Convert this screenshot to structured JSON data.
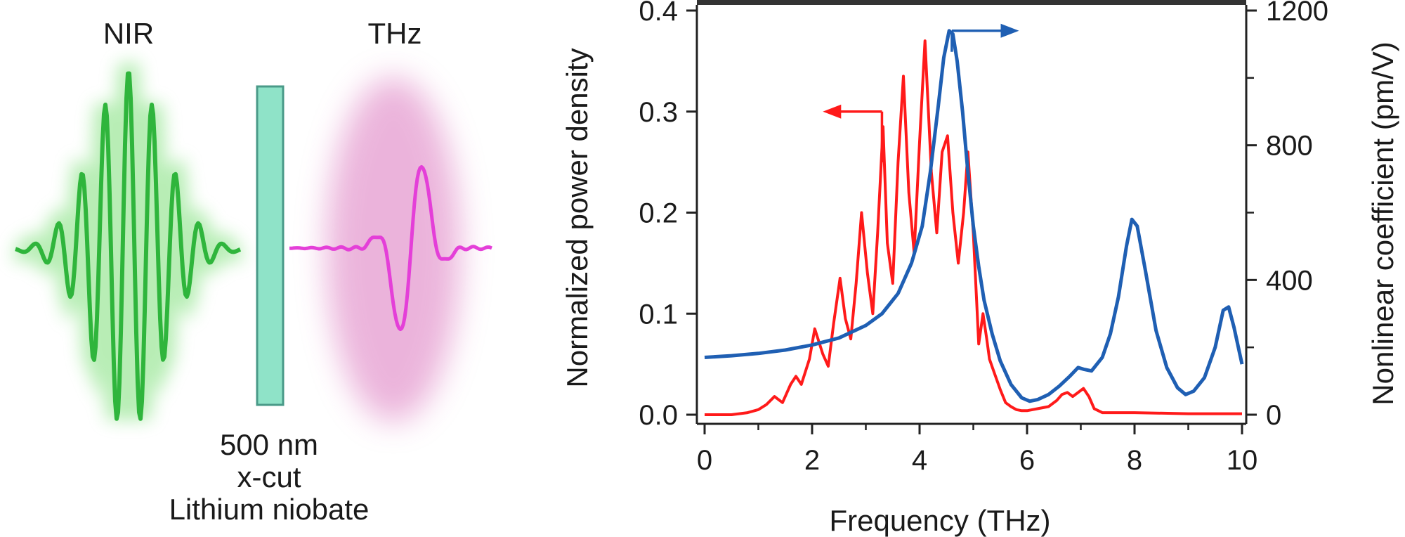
{
  "schematic": {
    "nir_label": "NIR",
    "thz_label": "THz",
    "crystal_label_line1": "500 nm",
    "crystal_label_line2": "x-cut",
    "crystal_label_line3": "Lithium niobate",
    "colors": {
      "nir_pulse": "#2fb53c",
      "nir_glow": "#7fe07a",
      "thz_pulse": "#e43fd8",
      "thz_glow": "#d86ab8",
      "crystal_fill": "#8fe3c8",
      "crystal_stroke": "#4a9a88"
    }
  },
  "chart_data": {
    "type": "line",
    "xlabel": "Frequency (THz)",
    "ylabel_left": "Normalized power density",
    "ylabel_right": "Nonlinear coefficient (pm/V)",
    "xlim": [
      0,
      10
    ],
    "ylim_left": [
      0,
      0.4
    ],
    "ylim_right": [
      0,
      1200
    ],
    "x_ticks": [
      0,
      2,
      4,
      6,
      8,
      10
    ],
    "x_tick_labels": [
      "0",
      "2",
      "4",
      "6",
      "8",
      "10"
    ],
    "left_ticks": [
      0,
      0.1,
      0.2,
      0.3,
      0.4
    ],
    "left_tick_labels": [
      "0.0",
      "0.1",
      "0.2",
      "0.3",
      "0.4"
    ],
    "right_ticks": [
      0,
      400,
      800,
      1200
    ],
    "right_tick_labels": [
      "0",
      "400",
      "800",
      "1200"
    ],
    "series": [
      {
        "name": "Normalized power density",
        "axis": "left",
        "color": "#ff1a1a",
        "x": [
          0.0,
          0.5,
          0.8,
          1.0,
          1.15,
          1.3,
          1.45,
          1.6,
          1.7,
          1.8,
          1.95,
          2.05,
          2.2,
          2.3,
          2.4,
          2.52,
          2.62,
          2.72,
          2.82,
          2.92,
          3.03,
          3.13,
          3.22,
          3.32,
          3.4,
          3.5,
          3.6,
          3.7,
          3.8,
          3.9,
          4.0,
          4.1,
          4.22,
          4.32,
          4.42,
          4.52,
          4.62,
          4.72,
          4.82,
          4.9,
          5.0,
          5.1,
          5.18,
          5.25,
          5.3,
          5.4,
          5.5,
          5.6,
          5.7,
          5.8,
          5.9,
          6.0,
          6.2,
          6.4,
          6.55,
          6.65,
          6.75,
          6.85,
          6.95,
          7.05,
          7.15,
          7.25,
          7.4,
          8.0,
          9.0,
          10.0
        ],
        "y": [
          0.0,
          0.0,
          0.002,
          0.005,
          0.01,
          0.018,
          0.012,
          0.03,
          0.038,
          0.03,
          0.055,
          0.085,
          0.06,
          0.048,
          0.09,
          0.135,
          0.095,
          0.075,
          0.13,
          0.2,
          0.14,
          0.1,
          0.18,
          0.285,
          0.17,
          0.13,
          0.25,
          0.335,
          0.22,
          0.16,
          0.27,
          0.37,
          0.24,
          0.18,
          0.26,
          0.276,
          0.2,
          0.15,
          0.2,
          0.26,
          0.18,
          0.07,
          0.1,
          0.075,
          0.055,
          0.04,
          0.025,
          0.012,
          0.008,
          0.005,
          0.004,
          0.004,
          0.006,
          0.008,
          0.014,
          0.02,
          0.022,
          0.018,
          0.022,
          0.026,
          0.018,
          0.006,
          0.002,
          0.002,
          0.001,
          0.001
        ]
      },
      {
        "name": "Nonlinear coefficient",
        "axis": "right",
        "color": "#1f5fb3",
        "x": [
          0.0,
          0.5,
          1.0,
          1.5,
          2.0,
          2.5,
          3.0,
          3.3,
          3.6,
          3.85,
          4.05,
          4.2,
          4.35,
          4.45,
          4.55,
          4.62,
          4.7,
          4.8,
          4.9,
          5.0,
          5.1,
          5.2,
          5.35,
          5.5,
          5.7,
          5.9,
          6.05,
          6.2,
          6.4,
          6.6,
          6.8,
          6.95,
          7.05,
          7.2,
          7.4,
          7.55,
          7.7,
          7.85,
          7.95,
          8.05,
          8.2,
          8.4,
          8.6,
          8.8,
          8.95,
          9.1,
          9.3,
          9.5,
          9.65,
          9.75,
          9.85,
          10.0
        ],
        "y": [
          170,
          175,
          182,
          192,
          207,
          228,
          265,
          300,
          360,
          450,
          560,
          720,
          920,
          1060,
          1140,
          1130,
          1050,
          900,
          720,
          560,
          440,
          340,
          240,
          160,
          90,
          50,
          40,
          45,
          60,
          85,
          115,
          140,
          135,
          130,
          170,
          240,
          350,
          500,
          580,
          560,
          430,
          250,
          140,
          80,
          60,
          70,
          110,
          200,
          310,
          320,
          260,
          150
        ]
      }
    ],
    "annotations": [
      {
        "text": "arrow pointing left to power density axis",
        "from": [
          3.3,
          0.3
        ],
        "to": [
          2.2,
          0.3
        ],
        "color": "#ff1a1a"
      },
      {
        "text": "arrow pointing right to nonlinear coefficient axis",
        "from": [
          4.6,
          1140
        ],
        "to": [
          5.85,
          1140
        ],
        "color": "#1f5fb3"
      }
    ]
  }
}
